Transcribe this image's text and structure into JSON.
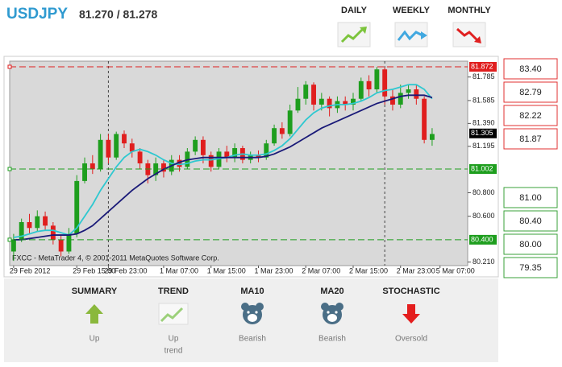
{
  "header": {
    "symbol": "USDJPY",
    "quote": "81.270 / 81.278"
  },
  "timeframes": [
    {
      "label": "DAILY"
    },
    {
      "label": "WEEKLY"
    },
    {
      "label": "MONTHLY"
    }
  ],
  "levels": {
    "resistance": [
      "83.40",
      "82.79",
      "82.22",
      "81.87"
    ],
    "support": [
      "81.00",
      "80.40",
      "80.00",
      "79.35"
    ]
  },
  "summary": {
    "items": [
      {
        "title": "SUMMARY",
        "value": [
          "Up"
        ]
      },
      {
        "title": "TREND",
        "value": [
          "Up",
          "trend"
        ]
      },
      {
        "title": "MA10",
        "value": [
          "Bearish"
        ]
      },
      {
        "title": "MA20",
        "value": [
          "Bearish"
        ]
      },
      {
        "title": "STOCHASTIC",
        "value": [
          "Oversold"
        ]
      }
    ]
  },
  "chart_data": {
    "type": "candlestick",
    "credit": "FXCC - MetaTrader 4, © 2001-2011 MetaQuotes Software Corp.",
    "categories": [
      "29 Feb 2012",
      null,
      null,
      null,
      null,
      null,
      null,
      null,
      "29 Feb 15:00",
      null,
      null,
      null,
      "29 Feb 23:00",
      null,
      null,
      null,
      null,
      null,
      null,
      "1 Mar 07:00",
      null,
      null,
      null,
      null,
      null,
      "1 Mar 15:00",
      null,
      null,
      null,
      null,
      null,
      "1 Mar 23:00",
      null,
      null,
      null,
      null,
      null,
      "2 Mar 07:00",
      null,
      null,
      null,
      null,
      null,
      "2 Mar 15:00",
      null,
      null,
      null,
      null,
      null,
      "2 Mar 23:00",
      null,
      null,
      null,
      null,
      "5 Mar 07:00",
      null,
      null,
      null
    ],
    "open": [
      80.3,
      80.4,
      80.55,
      80.5,
      80.6,
      80.52,
      80.4,
      80.3,
      80.45,
      80.9,
      81.05,
      81.0,
      81.25,
      81.1,
      81.3,
      81.22,
      81.15,
      81.05,
      80.95,
      81.05,
      80.98,
      81.08,
      81.02,
      81.15,
      81.25,
      81.12,
      81.02,
      81.15,
      81.1,
      81.18,
      81.08,
      81.12,
      81.1,
      81.22,
      81.35,
      81.3,
      81.5,
      81.6,
      81.72,
      81.55,
      81.6,
      81.52,
      81.58,
      81.55,
      81.6,
      81.75,
      81.68,
      81.85,
      81.62,
      81.55,
      81.65,
      81.68,
      81.6,
      81.25,
      null,
      null,
      null,
      null
    ],
    "high": [
      80.45,
      80.58,
      80.62,
      80.65,
      80.64,
      80.55,
      80.44,
      80.5,
      80.95,
      81.1,
      81.12,
      81.3,
      81.3,
      81.32,
      81.33,
      81.26,
      81.18,
      81.08,
      81.1,
      81.08,
      81.12,
      81.12,
      81.18,
      81.28,
      81.28,
      81.15,
      81.18,
      81.2,
      81.22,
      81.2,
      81.15,
      81.16,
      81.25,
      81.38,
      81.4,
      81.55,
      81.7,
      81.75,
      81.74,
      81.65,
      81.62,
      81.62,
      81.62,
      81.65,
      81.78,
      81.8,
      81.87,
      81.87,
      81.68,
      81.72,
      81.72,
      81.72,
      81.62,
      81.35,
      null,
      null,
      null,
      null
    ],
    "low": [
      80.22,
      80.38,
      80.45,
      80.47,
      80.48,
      80.36,
      80.26,
      80.28,
      80.42,
      80.88,
      80.96,
      80.98,
      81.05,
      81.08,
      81.18,
      81.1,
      81.0,
      80.88,
      80.9,
      80.93,
      80.95,
      80.98,
      81.0,
      81.12,
      81.05,
      80.98,
      81.0,
      81.06,
      81.06,
      81.05,
      81.05,
      81.06,
      81.08,
      81.2,
      81.26,
      81.28,
      81.48,
      81.55,
      81.5,
      81.5,
      81.45,
      81.48,
      81.5,
      81.5,
      81.58,
      81.62,
      81.65,
      81.55,
      81.5,
      81.52,
      81.6,
      81.55,
      81.22,
      81.2,
      null,
      null,
      null,
      null
    ],
    "close": [
      80.4,
      80.55,
      80.5,
      80.6,
      80.52,
      80.4,
      80.3,
      80.45,
      80.9,
      81.05,
      81.0,
      81.25,
      81.1,
      81.3,
      81.22,
      81.15,
      81.05,
      80.95,
      81.05,
      80.98,
      81.08,
      81.02,
      81.15,
      81.25,
      81.12,
      81.02,
      81.15,
      81.1,
      81.18,
      81.08,
      81.12,
      81.1,
      81.22,
      81.35,
      81.3,
      81.5,
      81.6,
      81.72,
      81.55,
      81.6,
      81.52,
      81.58,
      81.55,
      81.6,
      81.75,
      81.68,
      81.85,
      81.62,
      81.55,
      81.65,
      81.68,
      81.6,
      81.25,
      81.3,
      null,
      null,
      null,
      null
    ],
    "up_color": "#1e9e1e",
    "down_color": "#e01e1e",
    "lines": [
      {
        "color": "#2ec8d0",
        "values": [
          80.42,
          80.43,
          80.45,
          80.47,
          80.48,
          80.48,
          80.46,
          80.44,
          80.5,
          80.6,
          80.7,
          80.82,
          80.92,
          81.02,
          81.1,
          81.15,
          81.17,
          81.15,
          81.12,
          81.08,
          81.05,
          81.04,
          81.05,
          81.07,
          81.08,
          81.08,
          81.09,
          81.1,
          81.12,
          81.13,
          81.12,
          81.12,
          81.13,
          81.16,
          81.2,
          81.26,
          81.34,
          81.42,
          81.48,
          81.52,
          81.54,
          81.55,
          81.55,
          81.56,
          81.58,
          81.61,
          81.65,
          81.67,
          81.68,
          81.7,
          81.72,
          81.72,
          81.68,
          81.6,
          null,
          null,
          null,
          null
        ]
      },
      {
        "color": "#1a1a78",
        "values": [
          80.4,
          80.4,
          80.41,
          80.42,
          80.43,
          80.44,
          80.44,
          80.44,
          80.45,
          80.48,
          80.52,
          80.58,
          80.64,
          80.7,
          80.76,
          80.82,
          80.87,
          80.92,
          80.96,
          81.0,
          81.03,
          81.06,
          81.08,
          81.09,
          81.1,
          81.1,
          81.1,
          81.1,
          81.1,
          81.1,
          81.1,
          81.1,
          81.11,
          81.13,
          81.16,
          81.19,
          81.23,
          81.27,
          81.31,
          81.35,
          81.38,
          81.41,
          81.44,
          81.47,
          81.5,
          81.53,
          81.56,
          81.58,
          81.6,
          81.62,
          81.63,
          81.63,
          81.63,
          81.61,
          null,
          null,
          null,
          null
        ]
      }
    ],
    "ylim": [
      80.18,
      81.92
    ],
    "yticks": [
      81.785,
      81.585,
      {
        "value": 81.39,
        "label": "81.390"
      },
      81.195,
      {
        "value": 80.8,
        "label": "80.800"
      },
      {
        "value": 80.6,
        "label": "80.600"
      },
      {
        "value": 80.21,
        "label": "80.210"
      }
    ],
    "markers": [
      {
        "value": 81.872,
        "label": "81.872",
        "color": "#e01e1e",
        "line": true
      },
      {
        "value": 81.305,
        "label": "81.305",
        "color": "#000000",
        "line": false
      },
      {
        "value": 81.002,
        "label": "81.002",
        "color": "#1e9e1e",
        "line": true
      },
      {
        "value": 80.4,
        "label": "80.400",
        "color": "#1e9e1e",
        "line": true
      }
    ],
    "grid": false
  }
}
